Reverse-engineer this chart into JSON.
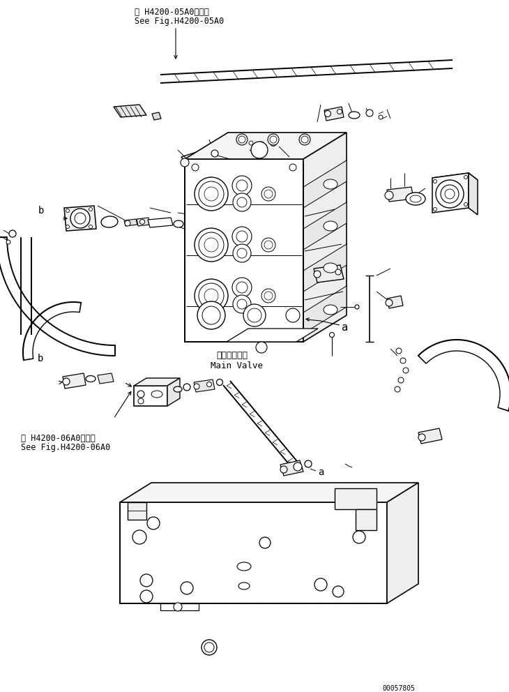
{
  "background_color": "#ffffff",
  "figure_width": 7.3,
  "figure_height": 9.92,
  "dpi": 100,
  "part_number": "00057805",
  "label_top_jp": "第 H4200-05A0図参照",
  "label_top_en": "See Fig.H4200-05A0",
  "label_bottom_jp": "第 H4200-06A0図参照",
  "label_bottom_en": "See Fig.H4200-06A0",
  "main_valve_jp": "メインバルブ",
  "main_valve_en": "Main Valve",
  "line_color": "#000000",
  "text_color": "#000000"
}
